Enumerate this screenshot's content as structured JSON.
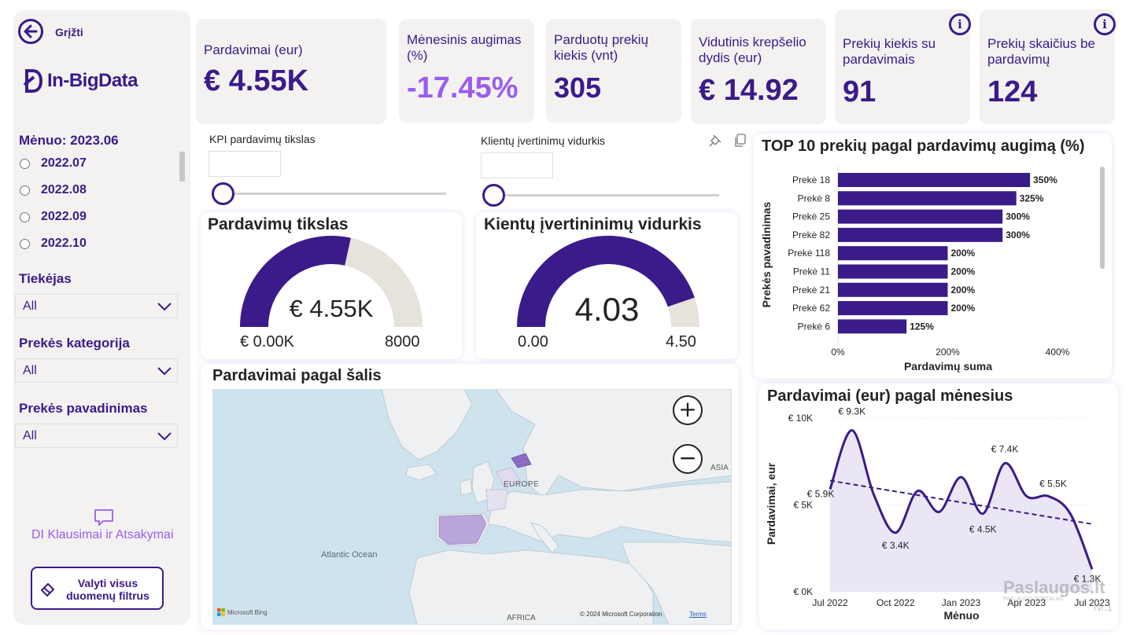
{
  "sidebar": {
    "back_label": "Grįžti",
    "logo_text": "In-BigData",
    "month_filter_title": "Mėnuo: 2023.06",
    "month_options": [
      "2022.07",
      "2022.08",
      "2022.09",
      "2022.10"
    ],
    "supplier_title": "Tiekėjas",
    "supplier_value": "All",
    "category_title": "Prekės kategorija",
    "category_value": "All",
    "product_title": "Prekės pavadinimas",
    "product_value": "All",
    "qa_label": "DI Klausimai ir Atsakymai",
    "clear_label_1": "Valyti visus",
    "clear_label_2": "duomenų filtrus"
  },
  "kpis": [
    {
      "label": "Pardavimai (eur)",
      "value": "€ 4.55K"
    },
    {
      "label": "Mėnesinis augimas (%)",
      "value": "-17.45%"
    },
    {
      "label": "Parduotų prekių kiekis (vnt)",
      "value": "305"
    },
    {
      "label": "Vidutinis krepšelio dydis (eur)",
      "value": "€ 14.92"
    },
    {
      "label": "Prekių kiekis su pardavimais",
      "value": "91"
    },
    {
      "label": "Prekių skaičius be pardavimų",
      "value": "124"
    }
  ],
  "colors": {
    "primary": "#3b1a8a",
    "growth_negative": "#9b5cf0",
    "gauge_bg": "#e6e2dc",
    "card_bg": "#f3f2f1"
  },
  "sliders": {
    "kpi_title": "KPI pardavimų tikslas",
    "rating_title": "Klientų įvertinimų vidurkis"
  },
  "gauge_sales": {
    "title": "Pardavimų tikslas",
    "value_label": "€ 4.55K",
    "min_label": "€ 0.00K",
    "max_label": "8000",
    "value": 4550,
    "min": 0,
    "max": 8000
  },
  "gauge_rating": {
    "title": "Kientų įvertininimų vidurkis",
    "value_label": "4.03",
    "min_label": "0.00",
    "max_label": "4.50",
    "value": 4.03,
    "min": 0,
    "max": 4.5
  },
  "map": {
    "title": "Pardavimai pagal šalis",
    "labels": {
      "europe": "EUROPE",
      "asia": "ASIA",
      "ocean": "Atlantic Ocean",
      "africa": "AFRICA"
    },
    "attribution": "© 2024 Microsoft Corporation",
    "terms": "Terms",
    "bing": "Microsoft Bing",
    "zoom_in": "+",
    "zoom_out": "−"
  },
  "chart_data": [
    {
      "type": "bar",
      "orientation": "horizontal",
      "title": "TOP 10 prekių pagal pardavimų augimą (%)",
      "xlabel": "Pardavimų suma",
      "ylabel": "Prekės pavadinimas",
      "categories": [
        "Prekė 18",
        "Prekė 8",
        "Prekė 25",
        "Prekė 82",
        "Prekė 118",
        "Prekė 11",
        "Prekė 21",
        "Prekė 62",
        "Prekė 6"
      ],
      "values": [
        350,
        325,
        300,
        300,
        200,
        200,
        200,
        200,
        125
      ],
      "value_labels": [
        "350%",
        "325%",
        "300%",
        "300%",
        "200%",
        "200%",
        "200%",
        "200%",
        "125%"
      ],
      "xticks": [
        "0%",
        "200%",
        "400%"
      ],
      "xlim": [
        0,
        400
      ],
      "color": "#3b1a8a"
    },
    {
      "type": "line",
      "title": "Pardavimai (eur) pagal mėnesius",
      "xlabel": "Mėnuo",
      "ylabel": "Pardavimai, eur",
      "x": [
        "Jul 2022",
        "Aug 2022",
        "Sep 2022",
        "Oct 2022",
        "Nov 2022",
        "Dec 2022",
        "Jan 2023",
        "Feb 2023",
        "Mar 2023",
        "Apr 2023",
        "May 2023",
        "Jun 2023",
        "Jul 2023"
      ],
      "values": [
        5900,
        9300,
        5600,
        3400,
        5800,
        4600,
        6600,
        4500,
        7400,
        5500,
        5500,
        4500,
        1300
      ],
      "point_labels": [
        {
          "index": 0,
          "text": "€ 5.9K"
        },
        {
          "index": 1,
          "text": "€ 9.3K"
        },
        {
          "index": 3,
          "text": "€ 3.4K"
        },
        {
          "index": 7,
          "text": "€ 4.5K"
        },
        {
          "index": 8,
          "text": "€ 7.4K"
        },
        {
          "index": 10,
          "text": "€ 5.5K"
        },
        {
          "index": 12,
          "text": "€ 1.3K"
        }
      ],
      "xticks": [
        "Jul 2022",
        "Oct 2022",
        "Jan 2023",
        "Apr 2023",
        "Jul 2023"
      ],
      "yticks": [
        "€ 0K",
        "€ 5K",
        "€ 10K"
      ],
      "ylim": [
        0,
        10000
      ],
      "trend": [
        6400,
        3900
      ],
      "color": "#3b1a8a"
    }
  ],
  "watermark": {
    "line1": "Paslaugos.lt",
    "line2": "PASLAUGŲ PORTALAS",
    "line3": "Nr.1"
  }
}
